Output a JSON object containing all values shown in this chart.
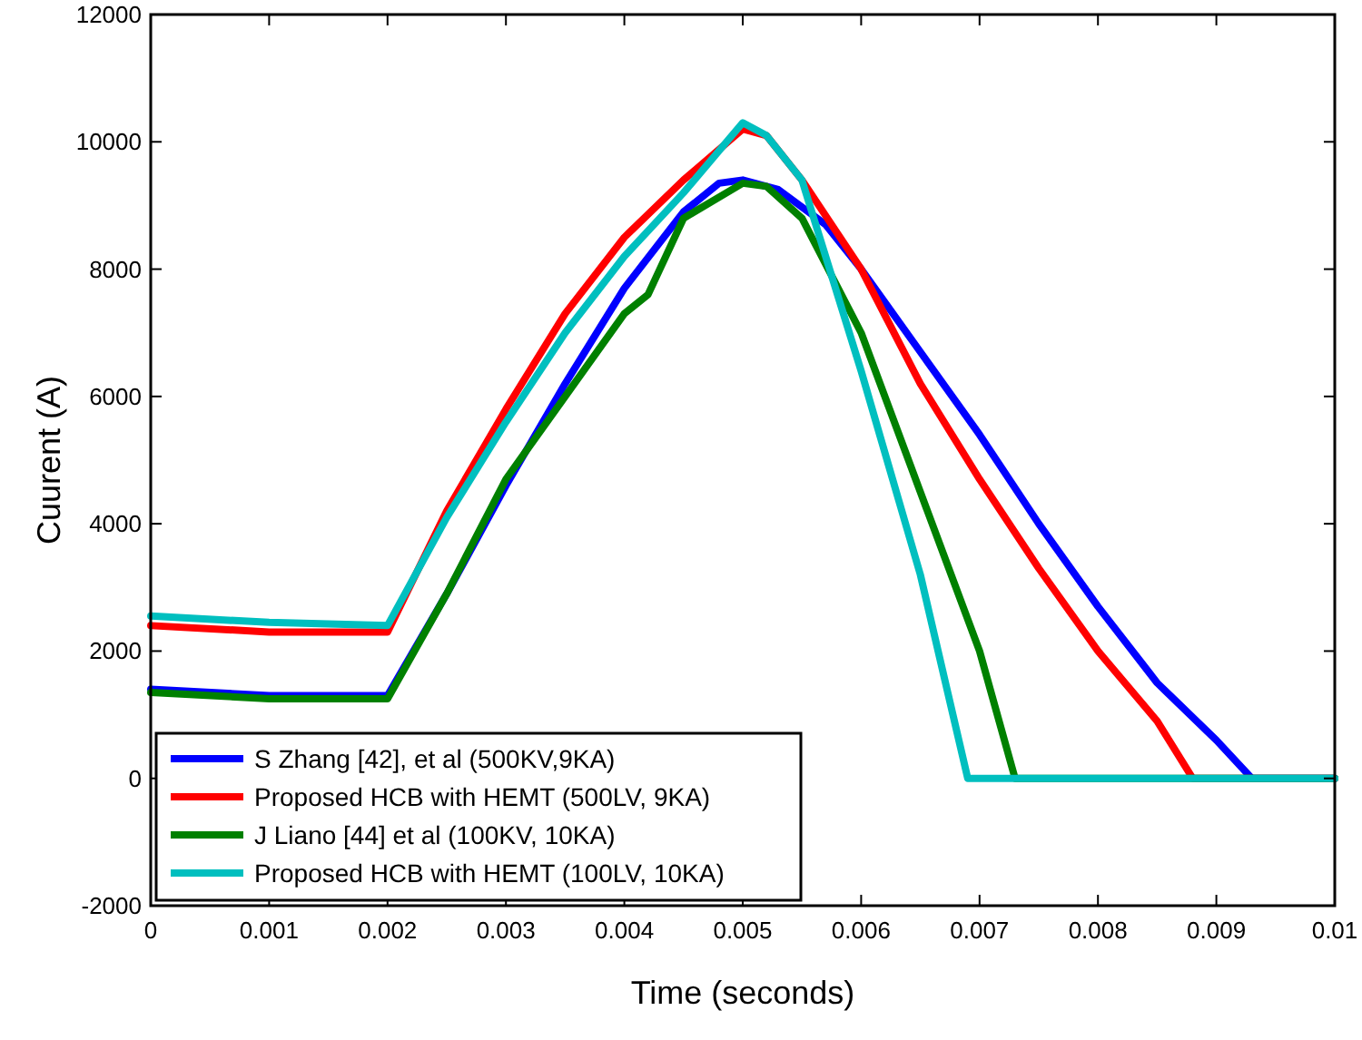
{
  "chart_data": {
    "type": "line",
    "xlabel": "Time (seconds)",
    "ylabel": "Cuurent (A)",
    "xlim": [
      0,
      0.01
    ],
    "ylim": [
      -2000,
      12000
    ],
    "xticks": [
      0,
      0.001,
      0.002,
      0.003,
      0.004,
      0.005,
      0.006,
      0.007,
      0.008,
      0.009,
      0.01
    ],
    "yticks": [
      -2000,
      0,
      2000,
      4000,
      6000,
      8000,
      10000,
      12000
    ],
    "grid": false,
    "legend": "bottom left",
    "line_style": "solid",
    "series": [
      {
        "name": "S Zhang [42], et al (500KV,9KA)",
        "color": "#0000ff",
        "x": [
          0,
          0.001,
          0.002,
          0.0025,
          0.003,
          0.0035,
          0.004,
          0.0045,
          0.0048,
          0.005,
          0.0053,
          0.0057,
          0.006,
          0.0065,
          0.007,
          0.0075,
          0.008,
          0.0085,
          0.009,
          0.0093,
          0.01
        ],
        "values": [
          1400,
          1300,
          1300,
          2900,
          4600,
          6200,
          7700,
          8900,
          9350,
          9400,
          9250,
          8700,
          8000,
          6700,
          5400,
          4000,
          2700,
          1500,
          600,
          0,
          0
        ]
      },
      {
        "name": "Proposed HCB with HEMT (500LV, 9KA)",
        "color": "#ff0000",
        "x": [
          0,
          0.001,
          0.002,
          0.0025,
          0.003,
          0.0035,
          0.004,
          0.0045,
          0.005,
          0.0052,
          0.0055,
          0.006,
          0.0065,
          0.007,
          0.0075,
          0.008,
          0.0085,
          0.0088,
          0.01
        ],
        "values": [
          2400,
          2300,
          2300,
          4200,
          5800,
          7300,
          8500,
          9400,
          10200,
          10100,
          9400,
          8000,
          6200,
          4700,
          3300,
          2000,
          900,
          0,
          0
        ]
      },
      {
        "name": "J Liano [44] et al (100KV, 10KA)",
        "color": "#008000",
        "x": [
          0,
          0.001,
          0.002,
          0.0025,
          0.003,
          0.0035,
          0.004,
          0.0042,
          0.0045,
          0.005,
          0.0052,
          0.0055,
          0.006,
          0.0065,
          0.007,
          0.0073,
          0.01
        ],
        "values": [
          1350,
          1250,
          1250,
          2900,
          4700,
          6000,
          7300,
          7600,
          8800,
          9350,
          9300,
          8800,
          7000,
          4500,
          2000,
          0,
          0
        ]
      },
      {
        "name": "Proposed HCB with HEMT (100LV, 10KA)",
        "color": "#00bfbf",
        "x": [
          0,
          0.001,
          0.002,
          0.0025,
          0.003,
          0.0035,
          0.004,
          0.0045,
          0.005,
          0.0052,
          0.0055,
          0.006,
          0.0065,
          0.0069,
          0.01
        ],
        "values": [
          2550,
          2450,
          2400,
          4100,
          5600,
          7000,
          8200,
          9200,
          10300,
          10100,
          9400,
          6400,
          3200,
          0,
          0
        ]
      }
    ]
  }
}
